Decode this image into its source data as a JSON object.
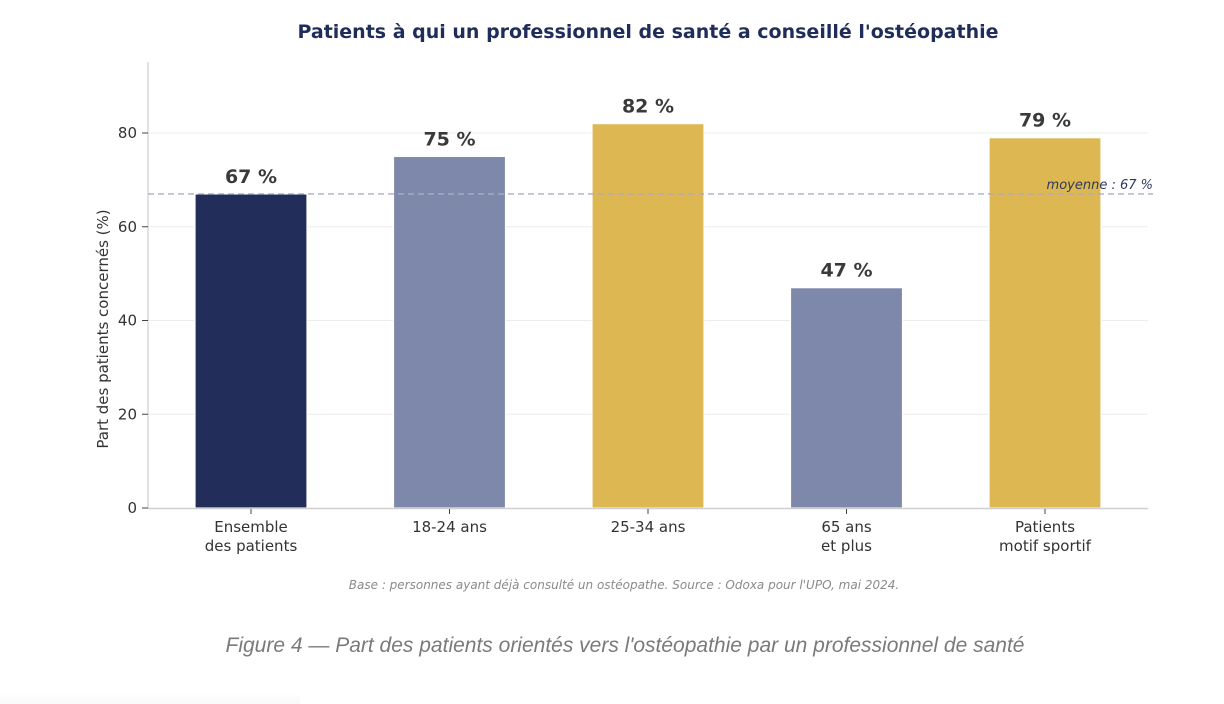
{
  "chart_data": {
    "type": "bar",
    "title": "Patients à qui un professionnel de santé a conseillé l'ostéopathie",
    "xlabel": "",
    "ylabel": "Part des patients concernés (%)",
    "ylim": [
      0,
      95
    ],
    "yticks": [
      0,
      20,
      40,
      60,
      80
    ],
    "grid": true,
    "categories": [
      [
        "Ensemble",
        "des patients"
      ],
      [
        "18-24 ans"
      ],
      [
        "25-34 ans"
      ],
      [
        "65 ans",
        "et plus"
      ],
      [
        "Patients",
        "motif sportif"
      ]
    ],
    "values": [
      67,
      75,
      82,
      47,
      79
    ],
    "value_labels": [
      "67 %",
      "75 %",
      "82 %",
      "47 %",
      "79 %"
    ],
    "bar_colors": [
      "#222e59",
      "#7e88aa",
      "#dcb752",
      "#7e88aa",
      "#dcb752"
    ],
    "reference_line": {
      "value": 67,
      "label": "moyenne : 67 %",
      "color": "#a9adc6",
      "style": "dashed"
    },
    "source_note": "Base : personnes ayant déjà consulté un ostéopathe.  Source : Odoxa pour l'UPO, mai 2024."
  },
  "caption": "Figure 4 — Part des patients orientés vers l'ostéopathie par un professionnel de santé"
}
